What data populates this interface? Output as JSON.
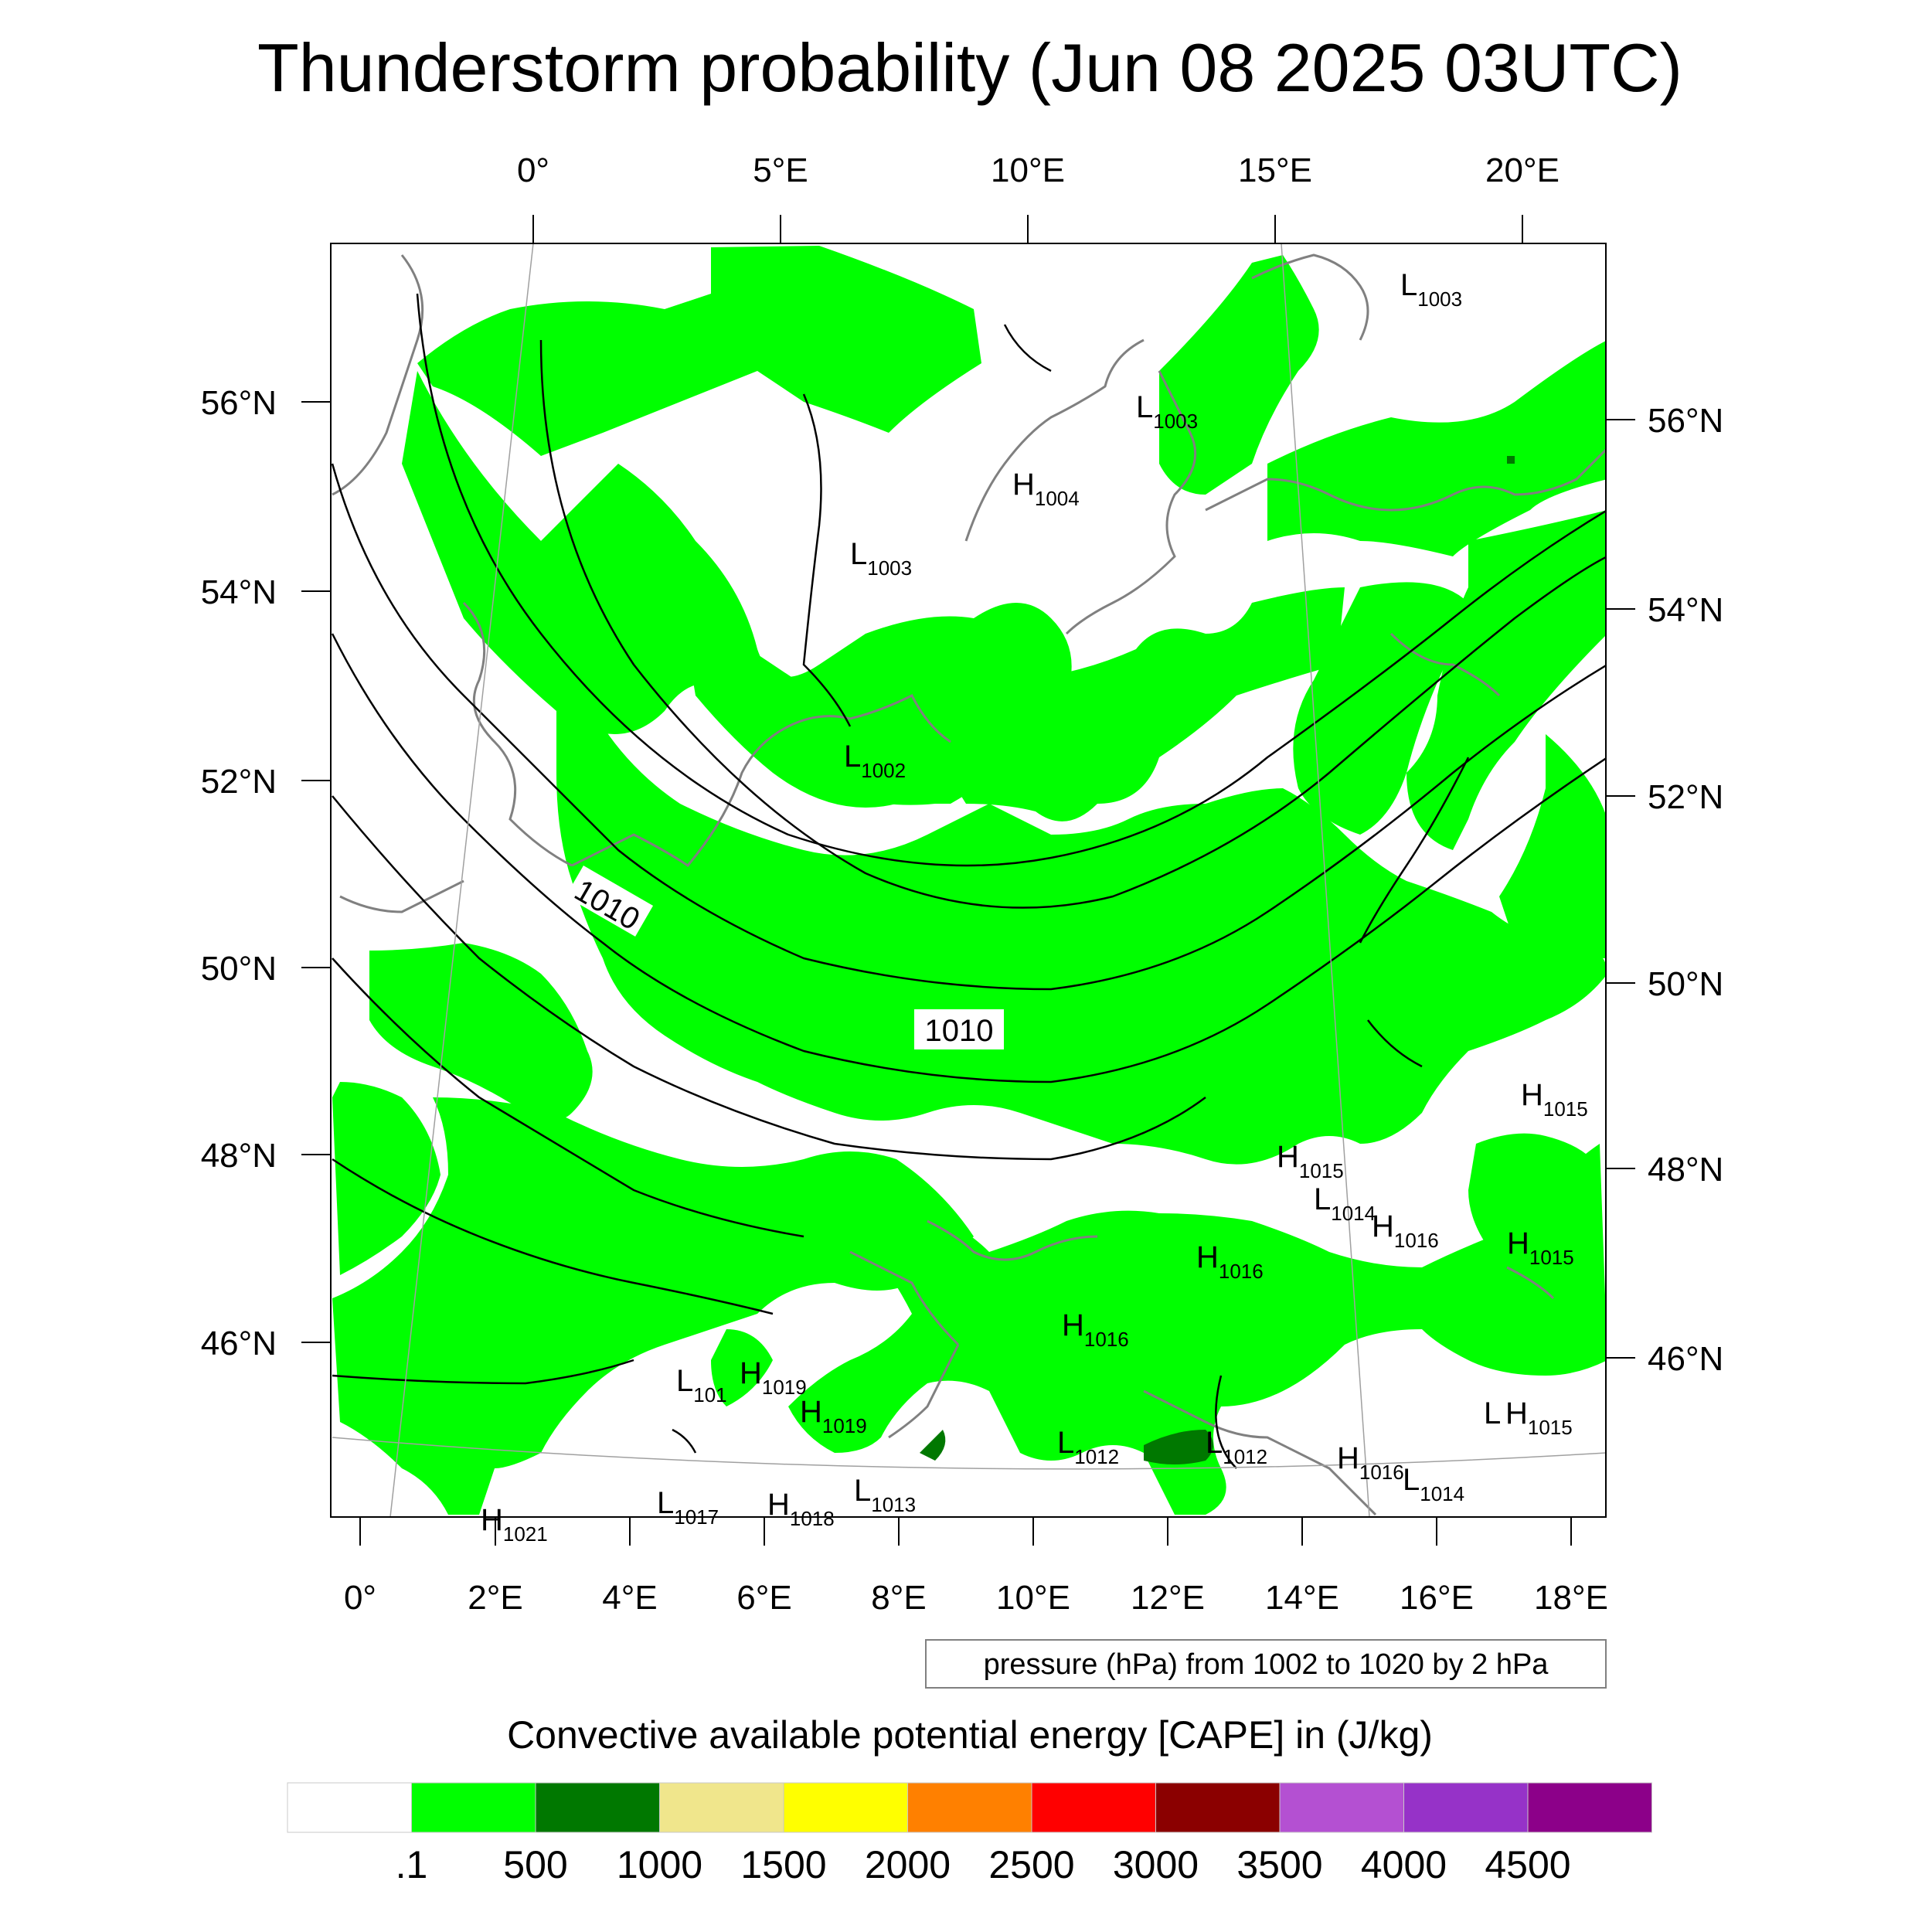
{
  "title": "Thunderstorm probability (Jun 08 2025 03UTC)",
  "axes": {
    "top_lon": [
      "0°",
      "5°E",
      "10°E",
      "15°E",
      "20°E"
    ],
    "bottom_lon": [
      "0°",
      "2°E",
      "4°E",
      "6°E",
      "8°E",
      "10°E",
      "12°E",
      "14°E",
      "16°E",
      "18°E"
    ],
    "left_lat": [
      "56°N",
      "54°N",
      "52°N",
      "50°N",
      "48°N",
      "46°N"
    ],
    "right_lat": [
      "56°N",
      "54°N",
      "52°N",
      "50°N",
      "48°N",
      "46°N"
    ]
  },
  "pressure_centers": [
    {
      "t": "L",
      "v": "1003"
    },
    {
      "t": "L",
      "v": "1003"
    },
    {
      "t": "H",
      "v": "1004"
    },
    {
      "t": "L",
      "v": "1003"
    },
    {
      "t": "L",
      "v": "1002"
    },
    {
      "t": "H",
      "v": "1015"
    },
    {
      "t": "H",
      "v": "1015"
    },
    {
      "t": "L",
      "v": "1014"
    },
    {
      "t": "H",
      "v": "1016"
    },
    {
      "t": "H",
      "v": "1016"
    },
    {
      "t": "H",
      "v": "1015"
    },
    {
      "t": "H",
      "v": "1016"
    },
    {
      "t": "L",
      "v": "101"
    },
    {
      "t": "H",
      "v": "1019"
    },
    {
      "t": "H",
      "v": "1019"
    },
    {
      "t": "L",
      "v": "1012"
    },
    {
      "t": "L",
      "v": "1012"
    },
    {
      "t": "H",
      "v": "1016"
    },
    {
      "t": "L",
      "v": "1014"
    },
    {
      "t": "L",
      "v": ""
    },
    {
      "t": "H",
      "v": "1015"
    },
    {
      "t": "L",
      "v": "1017"
    },
    {
      "t": "H",
      "v": "1018"
    },
    {
      "t": "L",
      "v": "1013"
    },
    {
      "t": "H",
      "v": "1021"
    }
  ],
  "isobar_labels": [
    "1010",
    "1010"
  ],
  "contour_note": "pressure (hPa) from 1002 to 1020 by 2 hPa",
  "colorbar": {
    "title": "Convective available potential energy [CAPE] in (J/kg)",
    "colors": [
      "#ffffff",
      "#00ff00",
      "#007800",
      "#f0e68c",
      "#ffff00",
      "#ff8000",
      "#ff0000",
      "#8b0000",
      "#b450d2",
      "#9632c8",
      "#8c0089"
    ],
    "labels": [
      ".1",
      "500",
      "1000",
      "1500",
      "2000",
      "2500",
      "3000",
      "3500",
      "4000",
      "4500"
    ]
  },
  "colors": {
    "cape_low": "#00ff00",
    "cape_mid": "#007800",
    "coast": "#808080",
    "isobar": "#000000"
  }
}
